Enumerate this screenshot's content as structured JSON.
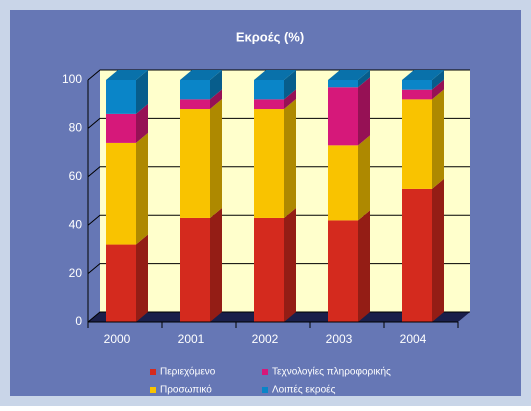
{
  "chart_data": {
    "type": "bar3d-stacked",
    "title": "Εκροές (%)",
    "categories": [
      "2000",
      "2001",
      "2002",
      "2003",
      "2004"
    ],
    "series": [
      {
        "name": "Περιεχόμενο",
        "color": "#d42a1e",
        "values": [
          32,
          43,
          43,
          42,
          55
        ]
      },
      {
        "name": "Προσωπικό",
        "color": "#f9c300",
        "values": [
          42,
          45,
          45,
          31,
          37
        ]
      },
      {
        "name": "Τεχνολογίες πληροφορικής",
        "color": "#d6187a",
        "values": [
          12,
          4,
          4,
          24,
          4
        ]
      },
      {
        "name": "Λοιπές εκροές",
        "color": "#0a85c8",
        "values": [
          14,
          8,
          8,
          3,
          4
        ]
      }
    ],
    "ylim": [
      0,
      100
    ],
    "yticks": [
      0,
      20,
      40,
      60,
      80,
      100
    ],
    "grid": true
  }
}
